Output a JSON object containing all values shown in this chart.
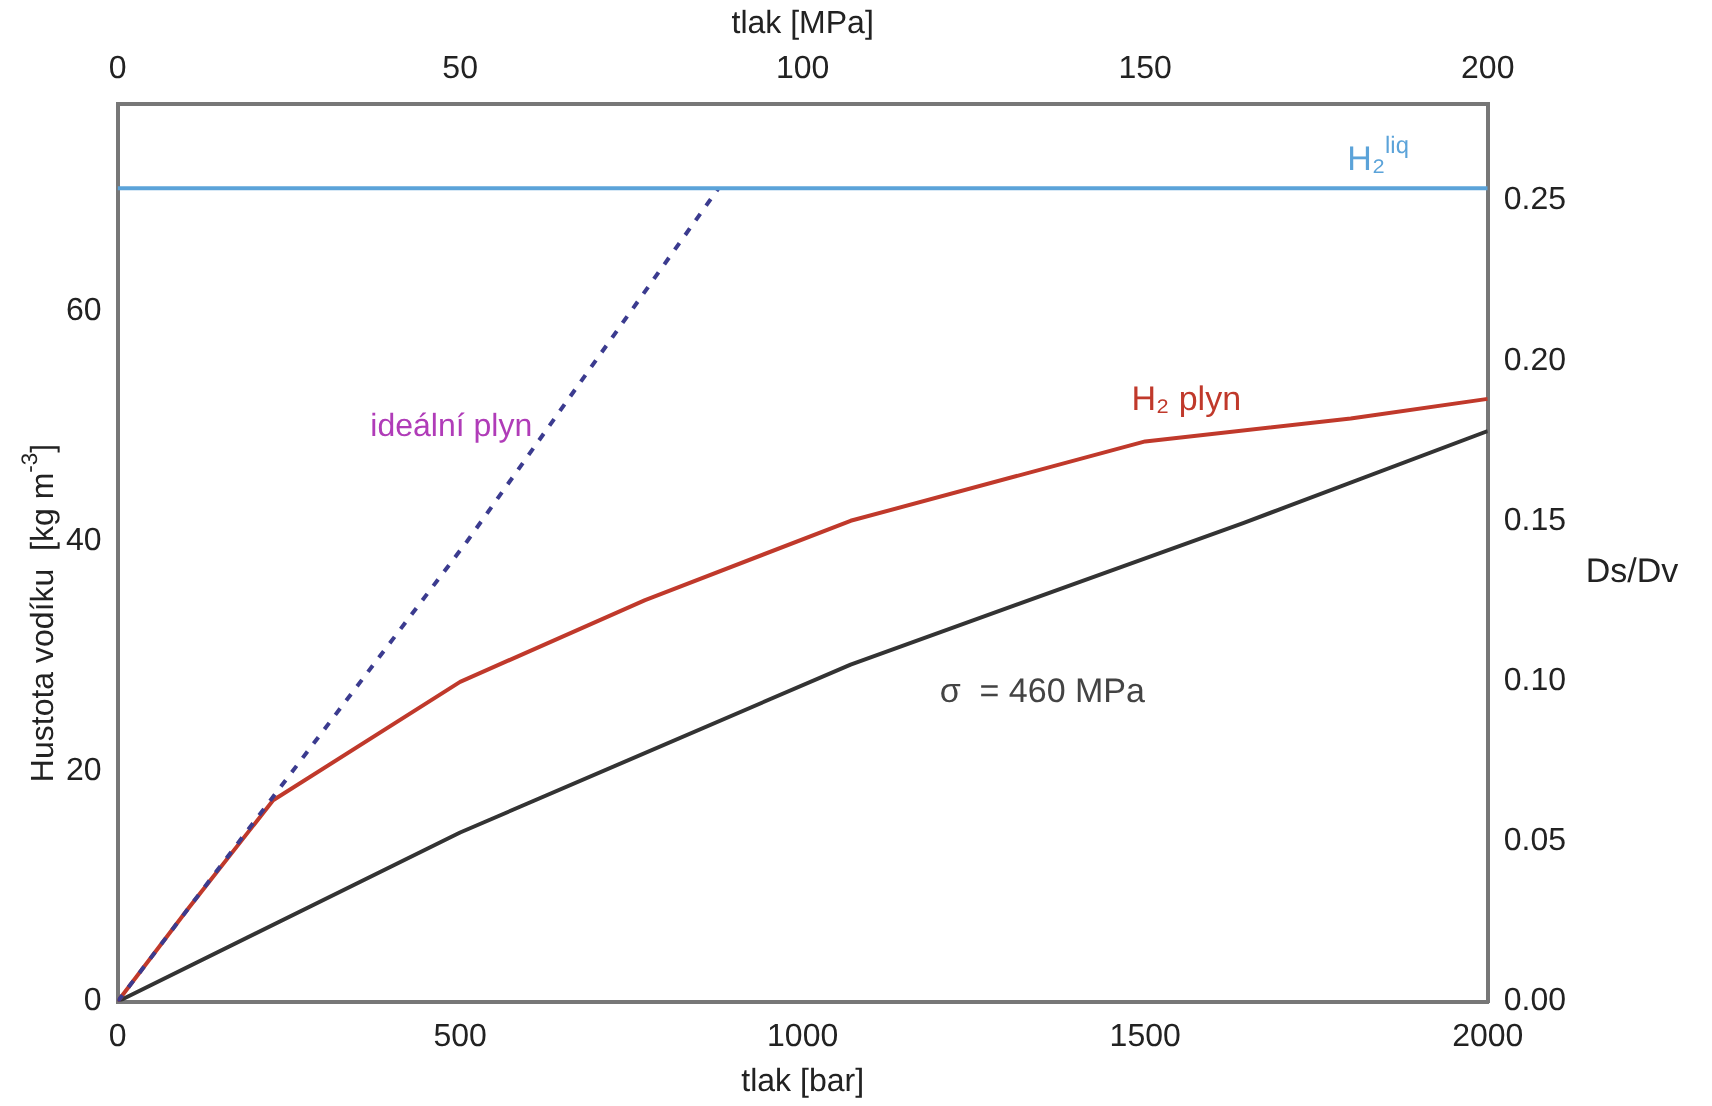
{
  "chart_data": {
    "type": "line",
    "xlabel": "tlak [bar]",
    "x2label": "tlak [MPa]",
    "ylabel": "Hustota vodíku  [kg m$^{-3}$]",
    "y2label": "Ds/Dv",
    "xlim": [
      0,
      2000
    ],
    "xticks": [
      0,
      500,
      1000,
      1500,
      2000
    ],
    "x2lim": [
      0,
      200
    ],
    "x2ticks": [
      0,
      50,
      100,
      150,
      200
    ],
    "ylim": [
      0,
      78
    ],
    "yticks": [
      0,
      20,
      40,
      60
    ],
    "y2lim": [
      0,
      0.28
    ],
    "y2ticks": [
      {
        "value": 0,
        "label": "0.00"
      },
      {
        "value": 0.05,
        "label": "0.05"
      },
      {
        "value": 0.1,
        "label": "0.10"
      },
      {
        "value": 0.15,
        "label": "0.15"
      },
      {
        "value": 0.2,
        "label": "0.20"
      },
      {
        "value": 0.25,
        "label": "0.25"
      }
    ],
    "grid": false,
    "legend": false,
    "marker": "none",
    "series": [
      {
        "name": "H₂$^{liq}$",
        "color": "#5ba3d9",
        "x": [
          0,
          2000
        ],
        "values": [
          70.7,
          70.7
        ]
      },
      {
        "name": "ideální plyn",
        "color": "#3b3b8f",
        "line_style": "dashed",
        "x": [
          0,
          510,
          877
        ],
        "values": [
          0,
          40,
          70.7
        ]
      },
      {
        "name": "H₂ plyn",
        "color": "#c0392b",
        "x": [
          0,
          102,
          227,
          500,
          770,
          1070,
          1500,
          1800,
          2000
        ],
        "values": [
          0,
          8.0,
          17.5,
          27.8,
          34.9,
          41.8,
          48.7,
          50.7,
          52.4
        ]
      },
      {
        "name": "σ  = 460 MPa",
        "color": "#333333",
        "x": [
          0,
          500,
          1070,
          1643,
          2000
        ],
        "values": [
          0,
          14.7,
          29.3,
          41.6,
          49.6
        ]
      }
    ]
  }
}
